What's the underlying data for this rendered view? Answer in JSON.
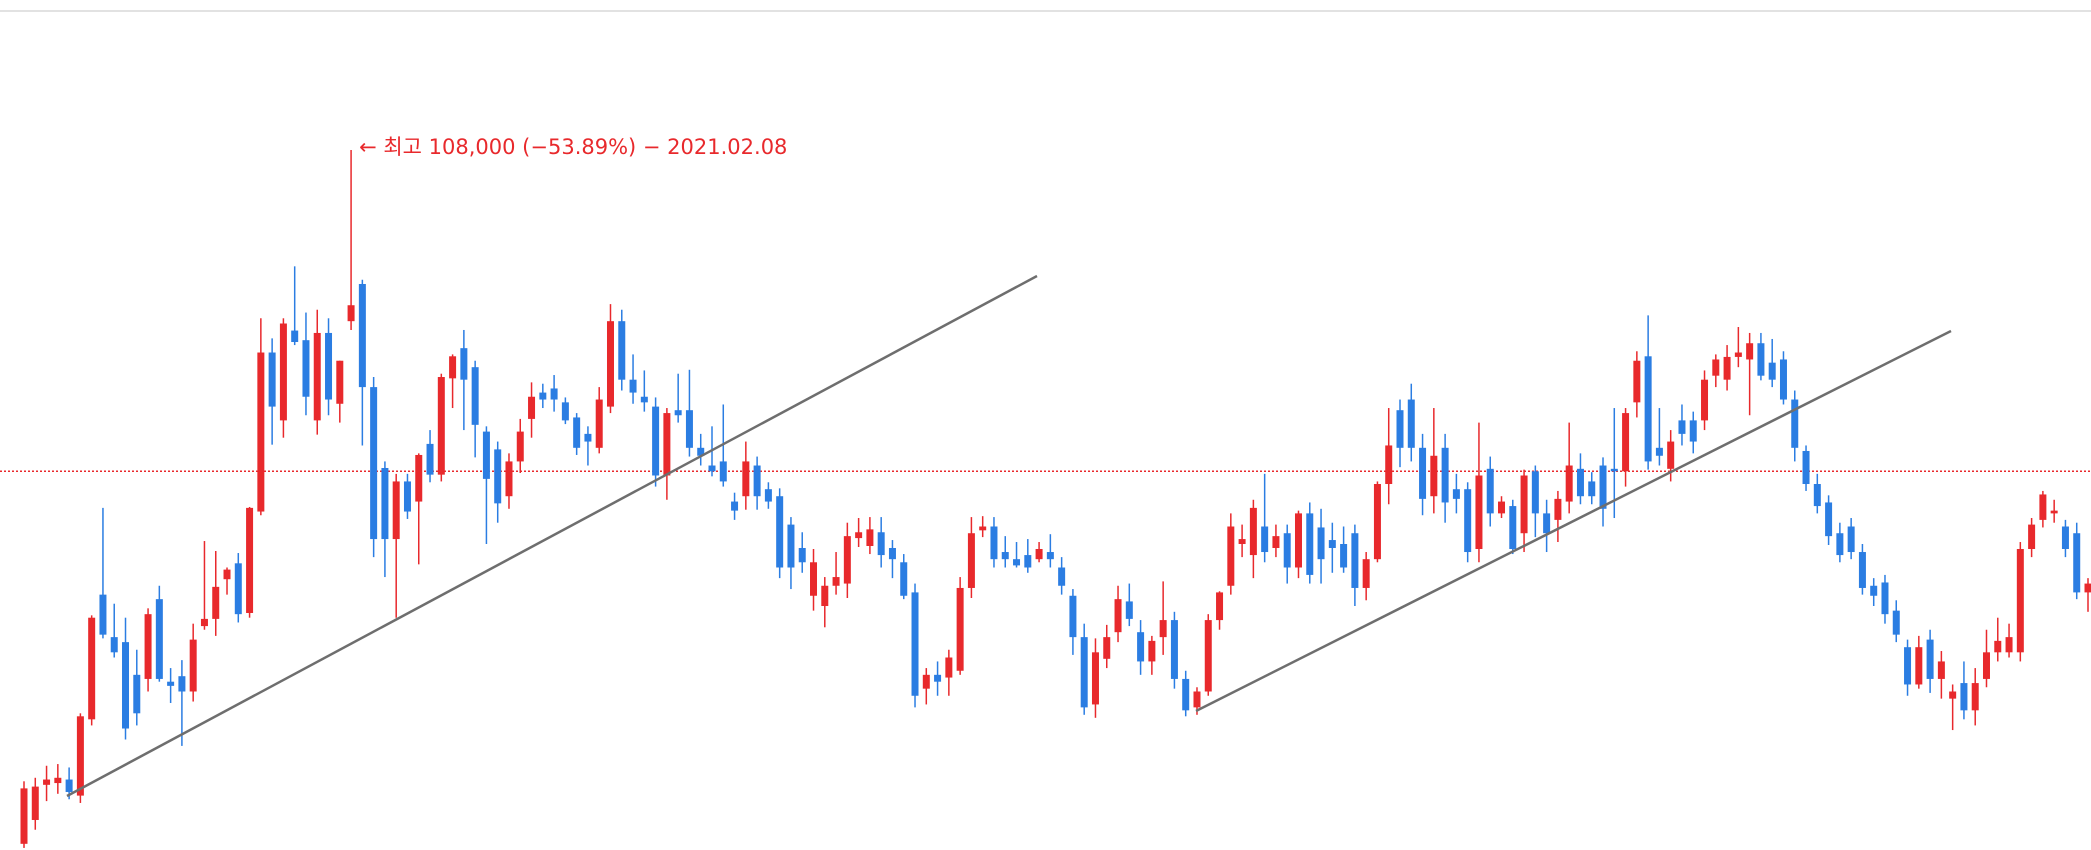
{
  "chart_data": {
    "type": "candlestick",
    "log_scale": true,
    "ylim": [
      20000,
      155000
    ],
    "up_color": "#e8292c",
    "down_color": "#2b7de2",
    "reference_line": {
      "value": 49800,
      "color": "#e8292c"
    },
    "annotation": {
      "text": "← 최고 108,000 (−53.89%) − 2021.02.08",
      "index": 29,
      "color": "#e8292c"
    },
    "candles": [
      [
        20300,
        23600,
        20100,
        23200
      ],
      [
        21500,
        23800,
        21000,
        23300
      ],
      [
        23400,
        24500,
        22500,
        23700
      ],
      [
        23500,
        24600,
        22900,
        23800
      ],
      [
        23700,
        24400,
        22600,
        23000
      ],
      [
        22800,
        27800,
        22400,
        27600
      ],
      [
        27400,
        35200,
        27000,
        35000
      ],
      [
        37000,
        45600,
        33300,
        33600
      ],
      [
        33400,
        36200,
        31800,
        32200
      ],
      [
        33000,
        35000,
        26100,
        26800
      ],
      [
        30500,
        32400,
        27000,
        27800
      ],
      [
        30200,
        35800,
        29300,
        35300
      ],
      [
        36600,
        37800,
        30000,
        30200
      ],
      [
        30000,
        31000,
        28500,
        29700
      ],
      [
        30400,
        31600,
        25700,
        29300
      ],
      [
        29300,
        34500,
        28600,
        33200
      ],
      [
        34300,
        42100,
        34000,
        34900
      ],
      [
        34900,
        41100,
        33500,
        37700
      ],
      [
        38400,
        39500,
        37000,
        39300
      ],
      [
        39900,
        40900,
        34600,
        35300
      ],
      [
        35400,
        45700,
        35000,
        45600
      ],
      [
        45200,
        72000,
        44800,
        66300
      ],
      [
        66300,
        68600,
        53100,
        58200
      ],
      [
        56300,
        72000,
        54000,
        71100
      ],
      [
        69900,
        81600,
        67500,
        68000
      ],
      [
        68300,
        73000,
        57000,
        59600
      ],
      [
        56300,
        73500,
        54400,
        69500
      ],
      [
        69500,
        72000,
        57000,
        59200
      ],
      [
        58600,
        65000,
        56000,
        65000
      ],
      [
        71500,
        108000,
        70000,
        74300
      ],
      [
        78200,
        79000,
        53000,
        61000
      ],
      [
        61000,
        62500,
        40500,
        42300
      ],
      [
        50200,
        51000,
        38600,
        42300
      ],
      [
        42300,
        49500,
        35000,
        48600
      ],
      [
        48600,
        49500,
        44400,
        45200
      ],
      [
        46300,
        52000,
        39800,
        51800
      ],
      [
        53200,
        55000,
        48500,
        49400
      ],
      [
        49400,
        63000,
        48600,
        62500
      ],
      [
        62300,
        66000,
        58000,
        65700
      ],
      [
        67000,
        70000,
        55000,
        62100
      ],
      [
        64000,
        65000,
        51500,
        55700
      ],
      [
        54800,
        55500,
        41800,
        48900
      ],
      [
        52500,
        53500,
        44000,
        46100
      ],
      [
        46900,
        52000,
        45500,
        51000
      ],
      [
        51000,
        56500,
        49600,
        54800
      ],
      [
        56500,
        61700,
        54000,
        59600
      ],
      [
        60200,
        61500,
        58000,
        59200
      ],
      [
        60800,
        62800,
        57500,
        59200
      ],
      [
        58800,
        59500,
        55800,
        56300
      ],
      [
        56700,
        57300,
        51800,
        52700
      ],
      [
        54500,
        55500,
        50500,
        53500
      ],
      [
        52700,
        61000,
        52000,
        59200
      ],
      [
        58200,
        74500,
        57300,
        71500
      ],
      [
        71500,
        73500,
        60500,
        62100
      ],
      [
        62100,
        66000,
        58600,
        60200
      ],
      [
        59600,
        63500,
        57500,
        58800
      ],
      [
        58200,
        59500,
        48000,
        49300
      ],
      [
        49300,
        58000,
        46500,
        57300
      ],
      [
        57700,
        63000,
        56000,
        57000
      ],
      [
        57700,
        63600,
        51600,
        52700
      ],
      [
        52700,
        54500,
        50500,
        51700
      ],
      [
        50500,
        55500,
        49200,
        49800
      ],
      [
        51000,
        58500,
        48000,
        48600
      ],
      [
        46300,
        47300,
        44300,
        45300
      ],
      [
        46900,
        53500,
        45400,
        51000
      ],
      [
        50500,
        51600,
        45400,
        46900
      ],
      [
        47700,
        48500,
        45500,
        46300
      ],
      [
        46900,
        47800,
        38500,
        39500
      ],
      [
        43800,
        44600,
        37500,
        39500
      ],
      [
        41400,
        43000,
        39000,
        40000
      ],
      [
        36900,
        41300,
        35600,
        40000
      ],
      [
        36000,
        38600,
        34200,
        37800
      ],
      [
        37800,
        41000,
        37000,
        38600
      ],
      [
        38000,
        44000,
        36700,
        42600
      ],
      [
        42400,
        44500,
        41500,
        43000
      ],
      [
        41600,
        44600,
        40800,
        43300
      ],
      [
        43000,
        44600,
        39500,
        40700
      ],
      [
        41400,
        42200,
        38500,
        40300
      ],
      [
        40000,
        40800,
        36600,
        36900
      ],
      [
        37200,
        38000,
        28200,
        29000
      ],
      [
        29500,
        31000,
        28400,
        30500
      ],
      [
        30500,
        31500,
        29000,
        30000
      ],
      [
        30300,
        32400,
        29000,
        31800
      ],
      [
        30800,
        38600,
        30500,
        37600
      ],
      [
        37600,
        44600,
        36700,
        42900
      ],
      [
        43200,
        44700,
        42500,
        43600
      ],
      [
        43600,
        44600,
        39500,
        40300
      ],
      [
        41000,
        42600,
        39500,
        40300
      ],
      [
        40300,
        42000,
        39500,
        39700
      ],
      [
        40700,
        42300,
        39000,
        39500
      ],
      [
        40300,
        42000,
        40000,
        41300
      ],
      [
        41000,
        42800,
        39500,
        40300
      ],
      [
        39500,
        40500,
        37000,
        37800
      ],
      [
        36900,
        37500,
        32000,
        33400
      ],
      [
        33400,
        34500,
        27700,
        28200
      ],
      [
        28400,
        33300,
        27500,
        32200
      ],
      [
        31700,
        34400,
        31000,
        33400
      ],
      [
        33800,
        37800,
        33000,
        36600
      ],
      [
        36400,
        38000,
        34300,
        34900
      ],
      [
        33800,
        34800,
        30500,
        31500
      ],
      [
        31500,
        33500,
        30500,
        33100
      ],
      [
        33400,
        38200,
        32000,
        34800
      ],
      [
        34800,
        35500,
        29500,
        30200
      ],
      [
        30200,
        30800,
        27600,
        28000
      ],
      [
        28200,
        29600,
        27700,
        29300
      ],
      [
        29300,
        35300,
        29000,
        34800
      ],
      [
        34800,
        37300,
        34000,
        37200
      ],
      [
        37800,
        45000,
        37000,
        43600
      ],
      [
        41800,
        43800,
        40500,
        42300
      ],
      [
        40700,
        46500,
        38500,
        45600
      ],
      [
        43600,
        49500,
        40000,
        41000
      ],
      [
        41400,
        43800,
        40500,
        42600
      ],
      [
        42900,
        43800,
        38000,
        39500
      ],
      [
        39500,
        45300,
        38500,
        45000
      ],
      [
        45000,
        46200,
        38000,
        38800
      ],
      [
        43500,
        45500,
        38000,
        40300
      ],
      [
        42200,
        44000,
        39000,
        41400
      ],
      [
        41800,
        43600,
        39000,
        39500
      ],
      [
        42900,
        43800,
        36000,
        37600
      ],
      [
        37600,
        41000,
        36500,
        40300
      ],
      [
        40300,
        48600,
        40000,
        48300
      ],
      [
        48300,
        58000,
        46000,
        53000
      ],
      [
        57700,
        59200,
        50300,
        52700
      ],
      [
        59200,
        61500,
        51000,
        52700
      ],
      [
        52700,
        54500,
        44800,
        46600
      ],
      [
        46900,
        58000,
        45000,
        51700
      ],
      [
        52700,
        54500,
        44000,
        46200
      ],
      [
        47700,
        49500,
        45000,
        46600
      ],
      [
        47700,
        48500,
        40000,
        41000
      ],
      [
        41300,
        56000,
        40000,
        49300
      ],
      [
        50100,
        51600,
        43600,
        45000
      ],
      [
        45000,
        46900,
        44500,
        46300
      ],
      [
        45800,
        46500,
        40800,
        41300
      ],
      [
        42900,
        50000,
        41000,
        49300
      ],
      [
        49800,
        50500,
        42500,
        45000
      ],
      [
        45000,
        46500,
        41000,
        42900
      ],
      [
        44300,
        47500,
        42000,
        46600
      ],
      [
        46300,
        56000,
        45000,
        50500
      ],
      [
        50100,
        52000,
        46000,
        46900
      ],
      [
        48600,
        49700,
        46000,
        46900
      ],
      [
        50500,
        51500,
        43600,
        45500
      ],
      [
        50100,
        58000,
        44500,
        49800
      ],
      [
        49800,
        58000,
        48000,
        57300
      ],
      [
        58800,
        66500,
        56700,
        65000
      ],
      [
        65700,
        72500,
        50000,
        51000
      ],
      [
        52700,
        58000,
        50500,
        51700
      ],
      [
        50100,
        55000,
        48600,
        53500
      ],
      [
        56300,
        58500,
        53000,
        54500
      ],
      [
        56300,
        57500,
        52000,
        53500
      ],
      [
        56300,
        63500,
        55000,
        62100
      ],
      [
        62700,
        66000,
        61000,
        65200
      ],
      [
        62100,
        67500,
        60500,
        65600
      ],
      [
        65600,
        70500,
        64000,
        66300
      ],
      [
        65200,
        69500,
        57000,
        67800
      ],
      [
        67800,
        69500,
        62000,
        62700
      ],
      [
        64700,
        68500,
        61000,
        62100
      ],
      [
        65200,
        66500,
        58500,
        59200
      ],
      [
        59200,
        60500,
        51000,
        52700
      ],
      [
        52300,
        53000,
        47500,
        48300
      ],
      [
        48300,
        49500,
        45000,
        45800
      ],
      [
        46200,
        47000,
        41700,
        42600
      ],
      [
        42900,
        44000,
        40000,
        40700
      ],
      [
        43600,
        44500,
        40300,
        41000
      ],
      [
        41000,
        41800,
        37000,
        37600
      ],
      [
        37800,
        38500,
        36000,
        36900
      ],
      [
        38100,
        38800,
        34500,
        35300
      ],
      [
        35600,
        36500,
        33000,
        33600
      ],
      [
        32600,
        33200,
        29000,
        29800
      ],
      [
        29800,
        33500,
        29500,
        32600
      ],
      [
        33200,
        34000,
        29200,
        30200
      ],
      [
        30200,
        32300,
        28800,
        31500
      ],
      [
        28800,
        29800,
        26700,
        29300
      ],
      [
        29900,
        31500,
        27400,
        28000
      ],
      [
        28000,
        31000,
        27000,
        29900
      ],
      [
        30200,
        34000,
        29600,
        32200
      ],
      [
        32200,
        35000,
        31500,
        33100
      ],
      [
        32200,
        34500,
        31800,
        33400
      ],
      [
        32200,
        42000,
        31500,
        41300
      ],
      [
        41300,
        44500,
        40500,
        43800
      ],
      [
        44300,
        47500,
        43500,
        47100
      ],
      [
        45000,
        46500,
        44000,
        45300
      ],
      [
        43600,
        44300,
        40500,
        41300
      ],
      [
        42900,
        44000,
        36600,
        37200
      ],
      [
        37200,
        38500,
        35500,
        38000
      ]
    ]
  }
}
